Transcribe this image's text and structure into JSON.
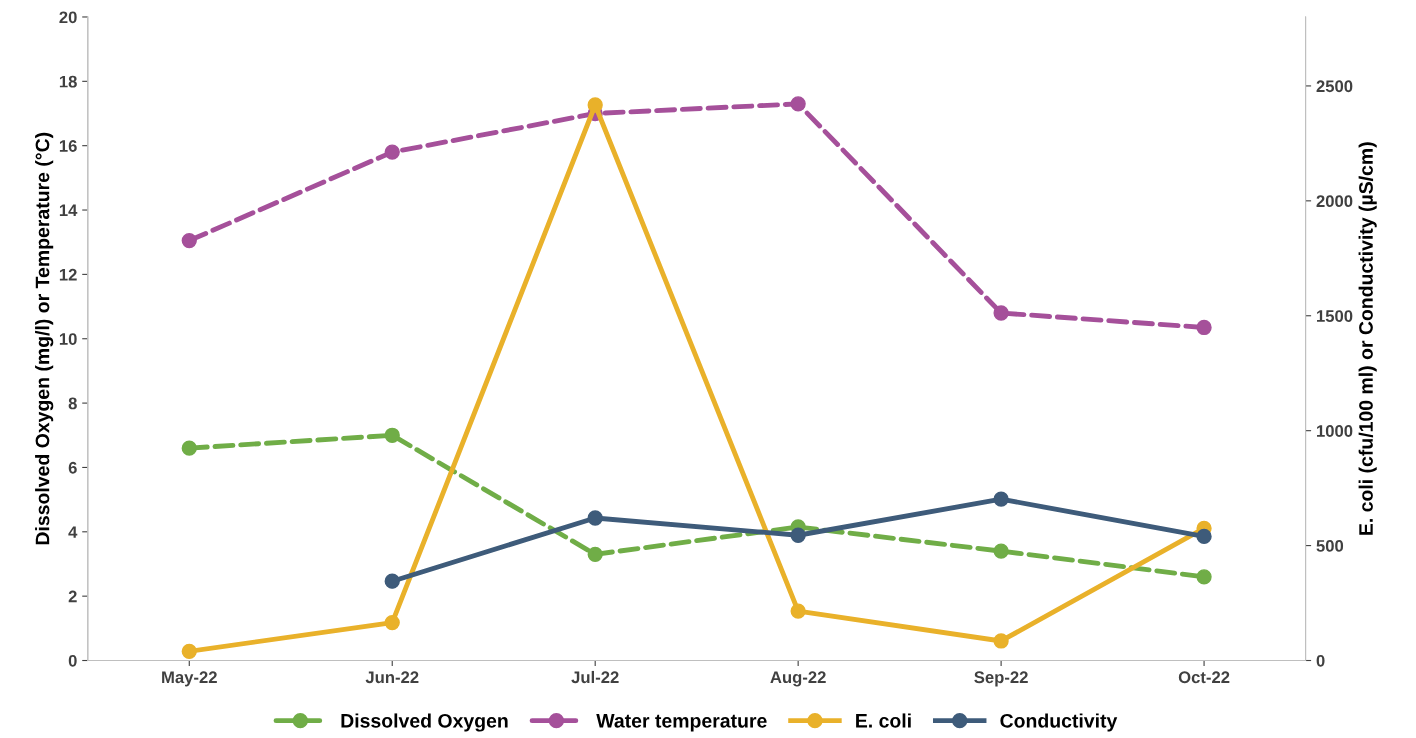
{
  "chart_data": {
    "type": "line",
    "categories": [
      "May-22",
      "Jun-22",
      "Jul-22",
      "Aug-22",
      "Sep-22",
      "Oct-22"
    ],
    "ylabel": "Dissolved Oxygen (mg/l) or Temperature (°C)",
    "y2label": "E. coli (cfu/100 ml) or Conductivity (µS/cm)",
    "ylim": [
      0,
      20
    ],
    "yticks": [
      0,
      2,
      4,
      6,
      8,
      10,
      12,
      14,
      16,
      18,
      20
    ],
    "y2lim": [
      0,
      2800
    ],
    "y2ticks": [
      0,
      500,
      1000,
      1500,
      2000,
      2500
    ],
    "marker": "circle",
    "grid": false,
    "legend": "bottom",
    "series": [
      {
        "name": "Dissolved Oxygen",
        "color": "#70ad47",
        "line_style": "dashed",
        "values": [
          6.6,
          7.0,
          3.3,
          4.15,
          3.4,
          2.6
        ]
      },
      {
        "name": "Water temperature",
        "color": "#a5509a",
        "line_style": "dashed",
        "values": [
          13.05,
          15.8,
          17.0,
          17.3,
          10.8,
          10.35
        ]
      },
      {
        "name": "E. coli",
        "color": "#e9b12a",
        "axis": "y2",
        "line_style": "solid",
        "values": [
          40,
          165,
          2417,
          215,
          85,
          575
        ]
      },
      {
        "name": "Conductivity",
        "color": "#3e5b7a",
        "axis": "y2",
        "line_style": "solid",
        "values": [
          null,
          345,
          620,
          545,
          702,
          540
        ]
      }
    ]
  }
}
